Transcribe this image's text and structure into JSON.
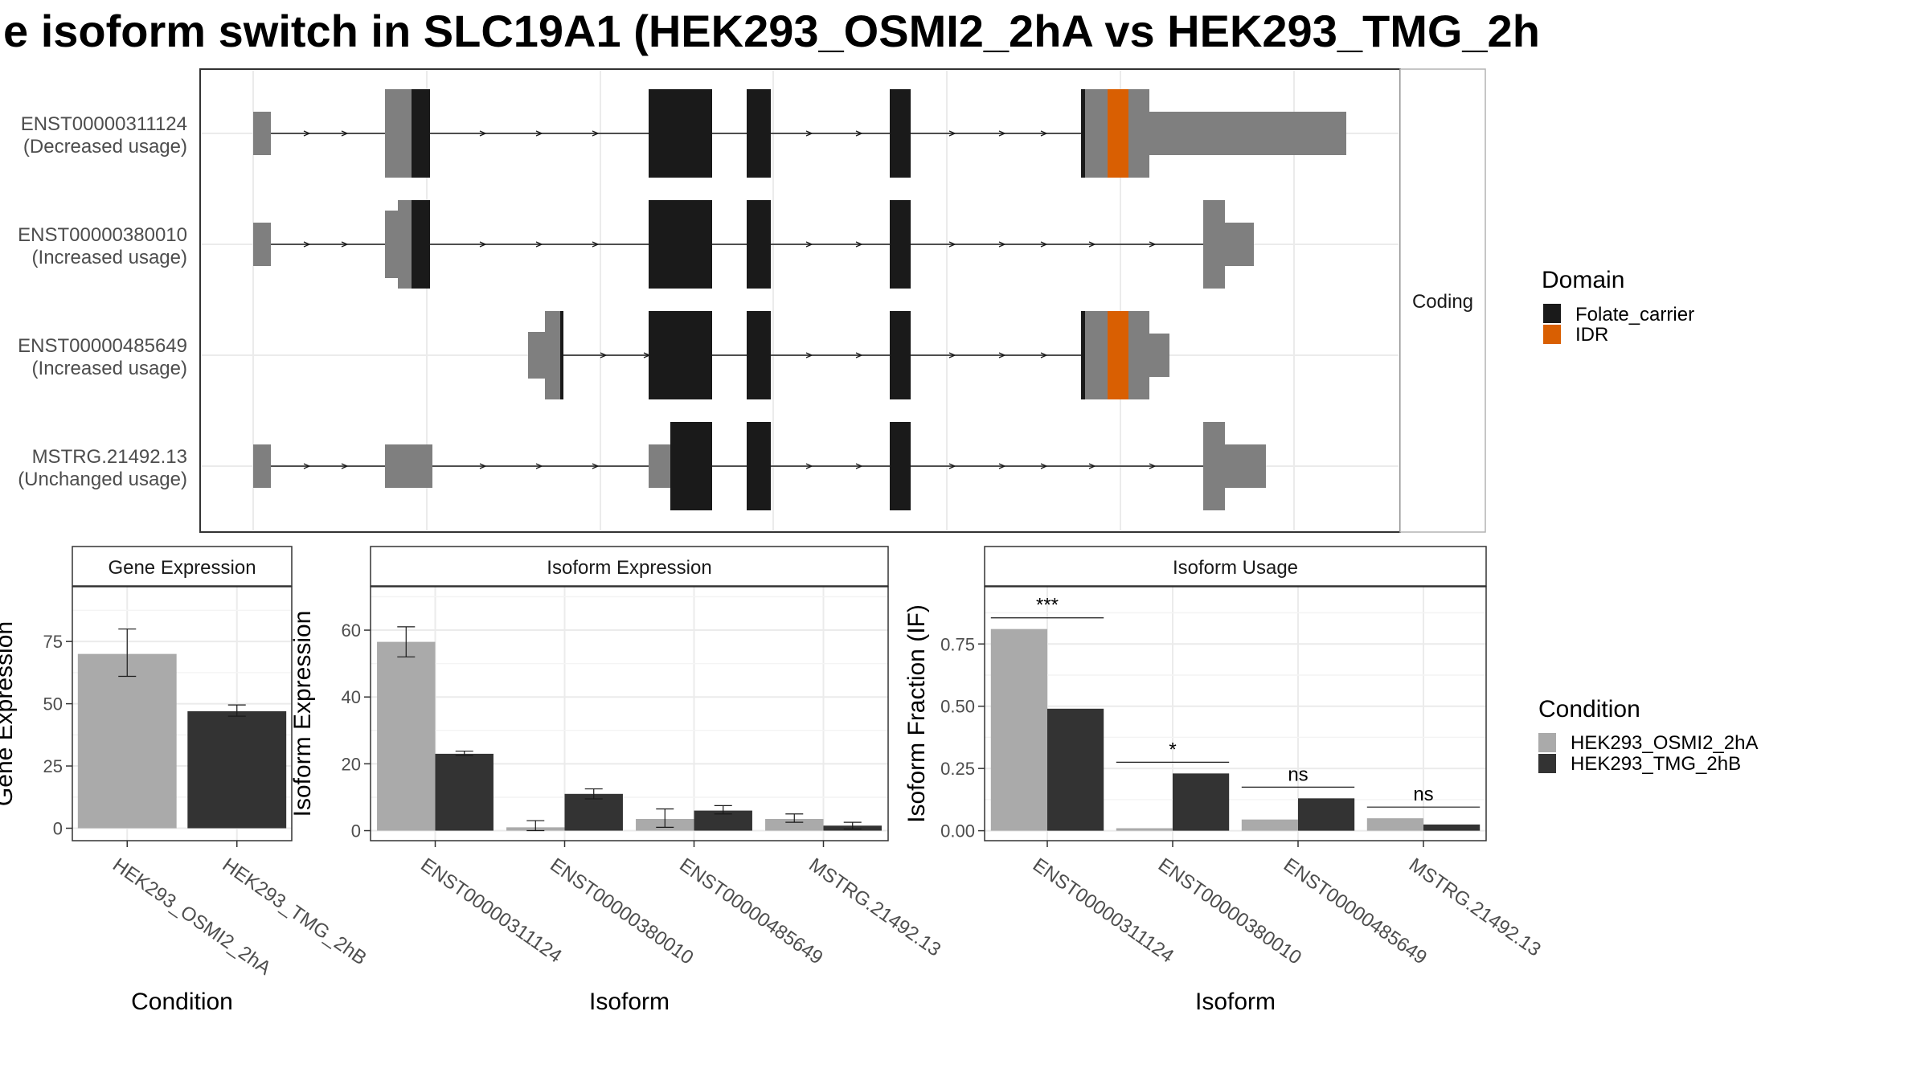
{
  "title": "e isoform switch in SLC19A1 (HEK293_OSMI2_2hA vs HEK293_TMG_2h",
  "colors": {
    "utr": "#7f7f7f",
    "folate_carrier": "#1a1a1a",
    "idr": "#d95f02",
    "cond_a": "#aaaaaa",
    "cond_b": "#333333",
    "grid": "#ebebeb",
    "strip": "#ffffff",
    "panel_border": "#333333"
  },
  "structure_panel": {
    "strip_label": "Coding",
    "transcripts": [
      {
        "id": "ENST00000311124",
        "usage": "(Decreased usage)"
      },
      {
        "id": "ENST00000380010",
        "usage": "(Increased usage)"
      },
      {
        "id": "ENST00000485649",
        "usage": "(Increased usage)"
      },
      {
        "id": "MSTRG.21492.13",
        "usage": "(Unchanged usage)"
      }
    ]
  },
  "legend_domain": {
    "title": "Domain",
    "items": [
      {
        "label": "Folate_carrier",
        "color": "#1a1a1a"
      },
      {
        "label": "IDR",
        "color": "#d95f02"
      }
    ]
  },
  "legend_condition": {
    "title": "Condition",
    "items": [
      {
        "label": "HEK293_OSMI2_2hA",
        "color": "#aaaaaa"
      },
      {
        "label": "HEK293_TMG_2hB",
        "color": "#333333"
      }
    ]
  },
  "chart_data": [
    {
      "type": "bar",
      "title": "Gene Expression",
      "xlabel": "Condition",
      "ylabel": "Gene Expression",
      "categories": [
        "HEK293_OSMI2_2hA",
        "HEK293_TMG_2hB"
      ],
      "values": [
        70,
        47
      ],
      "errors": [
        [
          61,
          80
        ],
        [
          45,
          49.5
        ]
      ],
      "ylim": [
        -5,
        97
      ],
      "yticks": [
        0,
        25,
        50,
        75
      ]
    },
    {
      "type": "bar",
      "title": "Isoform Expression",
      "xlabel": "Isoform",
      "ylabel": "Isoform Expression",
      "categories": [
        "ENST00000311124",
        "ENST00000380010",
        "ENST00000485649",
        "MSTRG.21492.13"
      ],
      "series": [
        {
          "name": "HEK293_OSMI2_2hA",
          "values": [
            56.5,
            1,
            3.5,
            3.5
          ],
          "errors": [
            [
              52,
              61
            ],
            [
              0,
              3
            ],
            [
              1,
              6.5
            ],
            [
              2.5,
              5
            ]
          ]
        },
        {
          "name": "HEK293_TMG_2hB",
          "values": [
            23,
            11,
            6,
            1.5
          ],
          "errors": [
            [
              22.5,
              23.8
            ],
            [
              9.5,
              12.5
            ],
            [
              5,
              7.5
            ],
            [
              0.5,
              2.5
            ]
          ]
        }
      ],
      "ylim": [
        -3,
        73
      ],
      "yticks": [
        0,
        20,
        40,
        60
      ]
    },
    {
      "type": "bar",
      "title": "Isoform Usage",
      "xlabel": "Isoform",
      "ylabel": "Isoform Fraction (IF)",
      "categories": [
        "ENST00000311124",
        "ENST00000380010",
        "ENST00000485649",
        "MSTRG.21492.13"
      ],
      "series": [
        {
          "name": "HEK293_OSMI2_2hA",
          "values": [
            0.81,
            0.01,
            0.045,
            0.05
          ]
        },
        {
          "name": "HEK293_TMG_2hB",
          "values": [
            0.49,
            0.23,
            0.13,
            0.025
          ]
        }
      ],
      "significance": [
        "***",
        "*",
        "ns",
        "ns"
      ],
      "significance_y": [
        0.855,
        0.275,
        0.175,
        0.095
      ],
      "ylim": [
        -0.04,
        0.98
      ],
      "yticks": [
        0.0,
        0.25,
        0.5,
        0.75
      ],
      "ytick_labels": [
        "0.00",
        "0.25",
        "0.50",
        "0.75"
      ]
    }
  ]
}
